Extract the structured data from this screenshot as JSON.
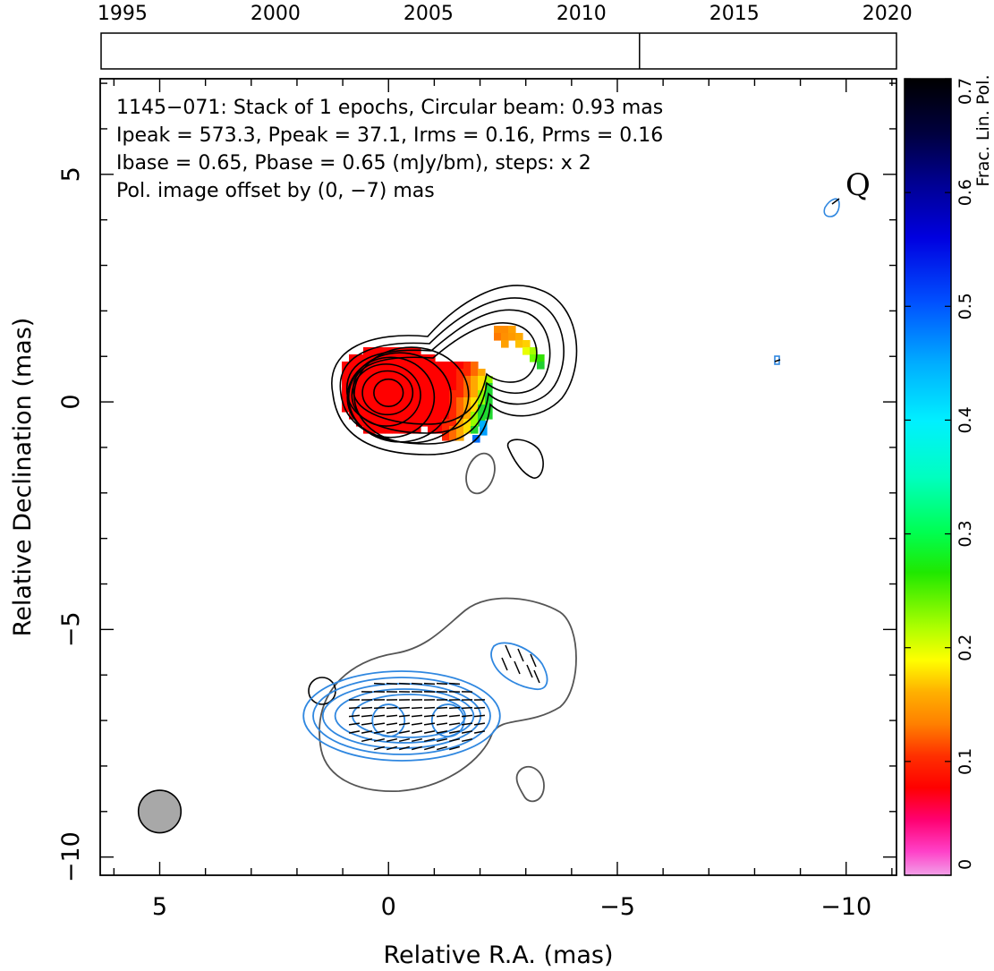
{
  "chart_data": {
    "type": "contour",
    "source": "1145−071",
    "xlabel": "Relative R.A. (mas)",
    "ylabel": "Relative Declination (mas)",
    "xlim": [
      6.3,
      -11.1
    ],
    "ylim": [
      -10.4,
      7.1
    ],
    "x_ticks": [
      5,
      0,
      -5,
      -10
    ],
    "x_tick_labels": [
      "5",
      "0",
      "−5",
      "−10"
    ],
    "y_ticks": [
      5,
      0,
      -5,
      -10
    ],
    "y_tick_labels": [
      "5",
      "0",
      "−5",
      "−10"
    ],
    "annotations": {
      "line1": "1145−071: Stack of 1 epochs, Circular beam: 0.93 mas",
      "line2": "Ipeak = 573.3, Ppeak = 37.1, Irms = 0.16, Prms = 0.16",
      "line3": "Ibase = 0.65, Pbase = 0.65 (mJy/bm), steps: x 2",
      "line4": "Pol. image offset by (0, −7) mas",
      "line4_color": "#2f87e0",
      "corner_letter": "Q"
    },
    "beam": {
      "x": 5.0,
      "y": -9.0,
      "diameter_mas": 0.93
    },
    "timeline": {
      "years": [
        1995,
        2000,
        2005,
        2010,
        2015,
        2020
      ],
      "range": [
        1994.3,
        2020.3
      ],
      "epochs": [
        2011.9
      ]
    },
    "colorbar": {
      "label": "Frac. Lin. Pol.",
      "range": [
        0,
        0.7
      ],
      "ticks": [
        0,
        0.1,
        0.2,
        0.3,
        0.4,
        0.5,
        0.6,
        0.7
      ],
      "tick_labels": [
        "0",
        "0.1",
        "0.2",
        "0.3",
        "0.4",
        "0.5",
        "0.6",
        "0.7"
      ]
    },
    "total_intensity_contours_mas": [
      {
        "center": [
          0.0,
          0.2
        ],
        "rx": 0.32,
        "ry": 0.3
      },
      {
        "center": [
          0.02,
          0.2
        ],
        "rx": 0.55,
        "ry": 0.48
      },
      {
        "center": [
          0.05,
          0.15
        ],
        "rx": 0.75,
        "ry": 0.68
      },
      {
        "center": [
          -0.05,
          0.1
        ],
        "rx": 0.95,
        "ry": 0.88
      },
      {
        "center": [
          -0.25,
          0.1
        ],
        "rx": 1.12,
        "ry": 0.98
      },
      {
        "center": [
          -0.5,
          0.15
        ],
        "rx": 1.25,
        "ry": 1.05
      }
    ],
    "pol_peaks": [
      {
        "x": 0.0,
        "y": -7.0
      },
      {
        "x": -1.3,
        "y": -7.0
      },
      {
        "x": -3.2,
        "y": -6.0
      }
    ],
    "colors": {
      "stokes_i": "#000000",
      "negative_contour": "#555555",
      "pol_contour": "#2f87e0",
      "evpa": "#000000"
    }
  }
}
